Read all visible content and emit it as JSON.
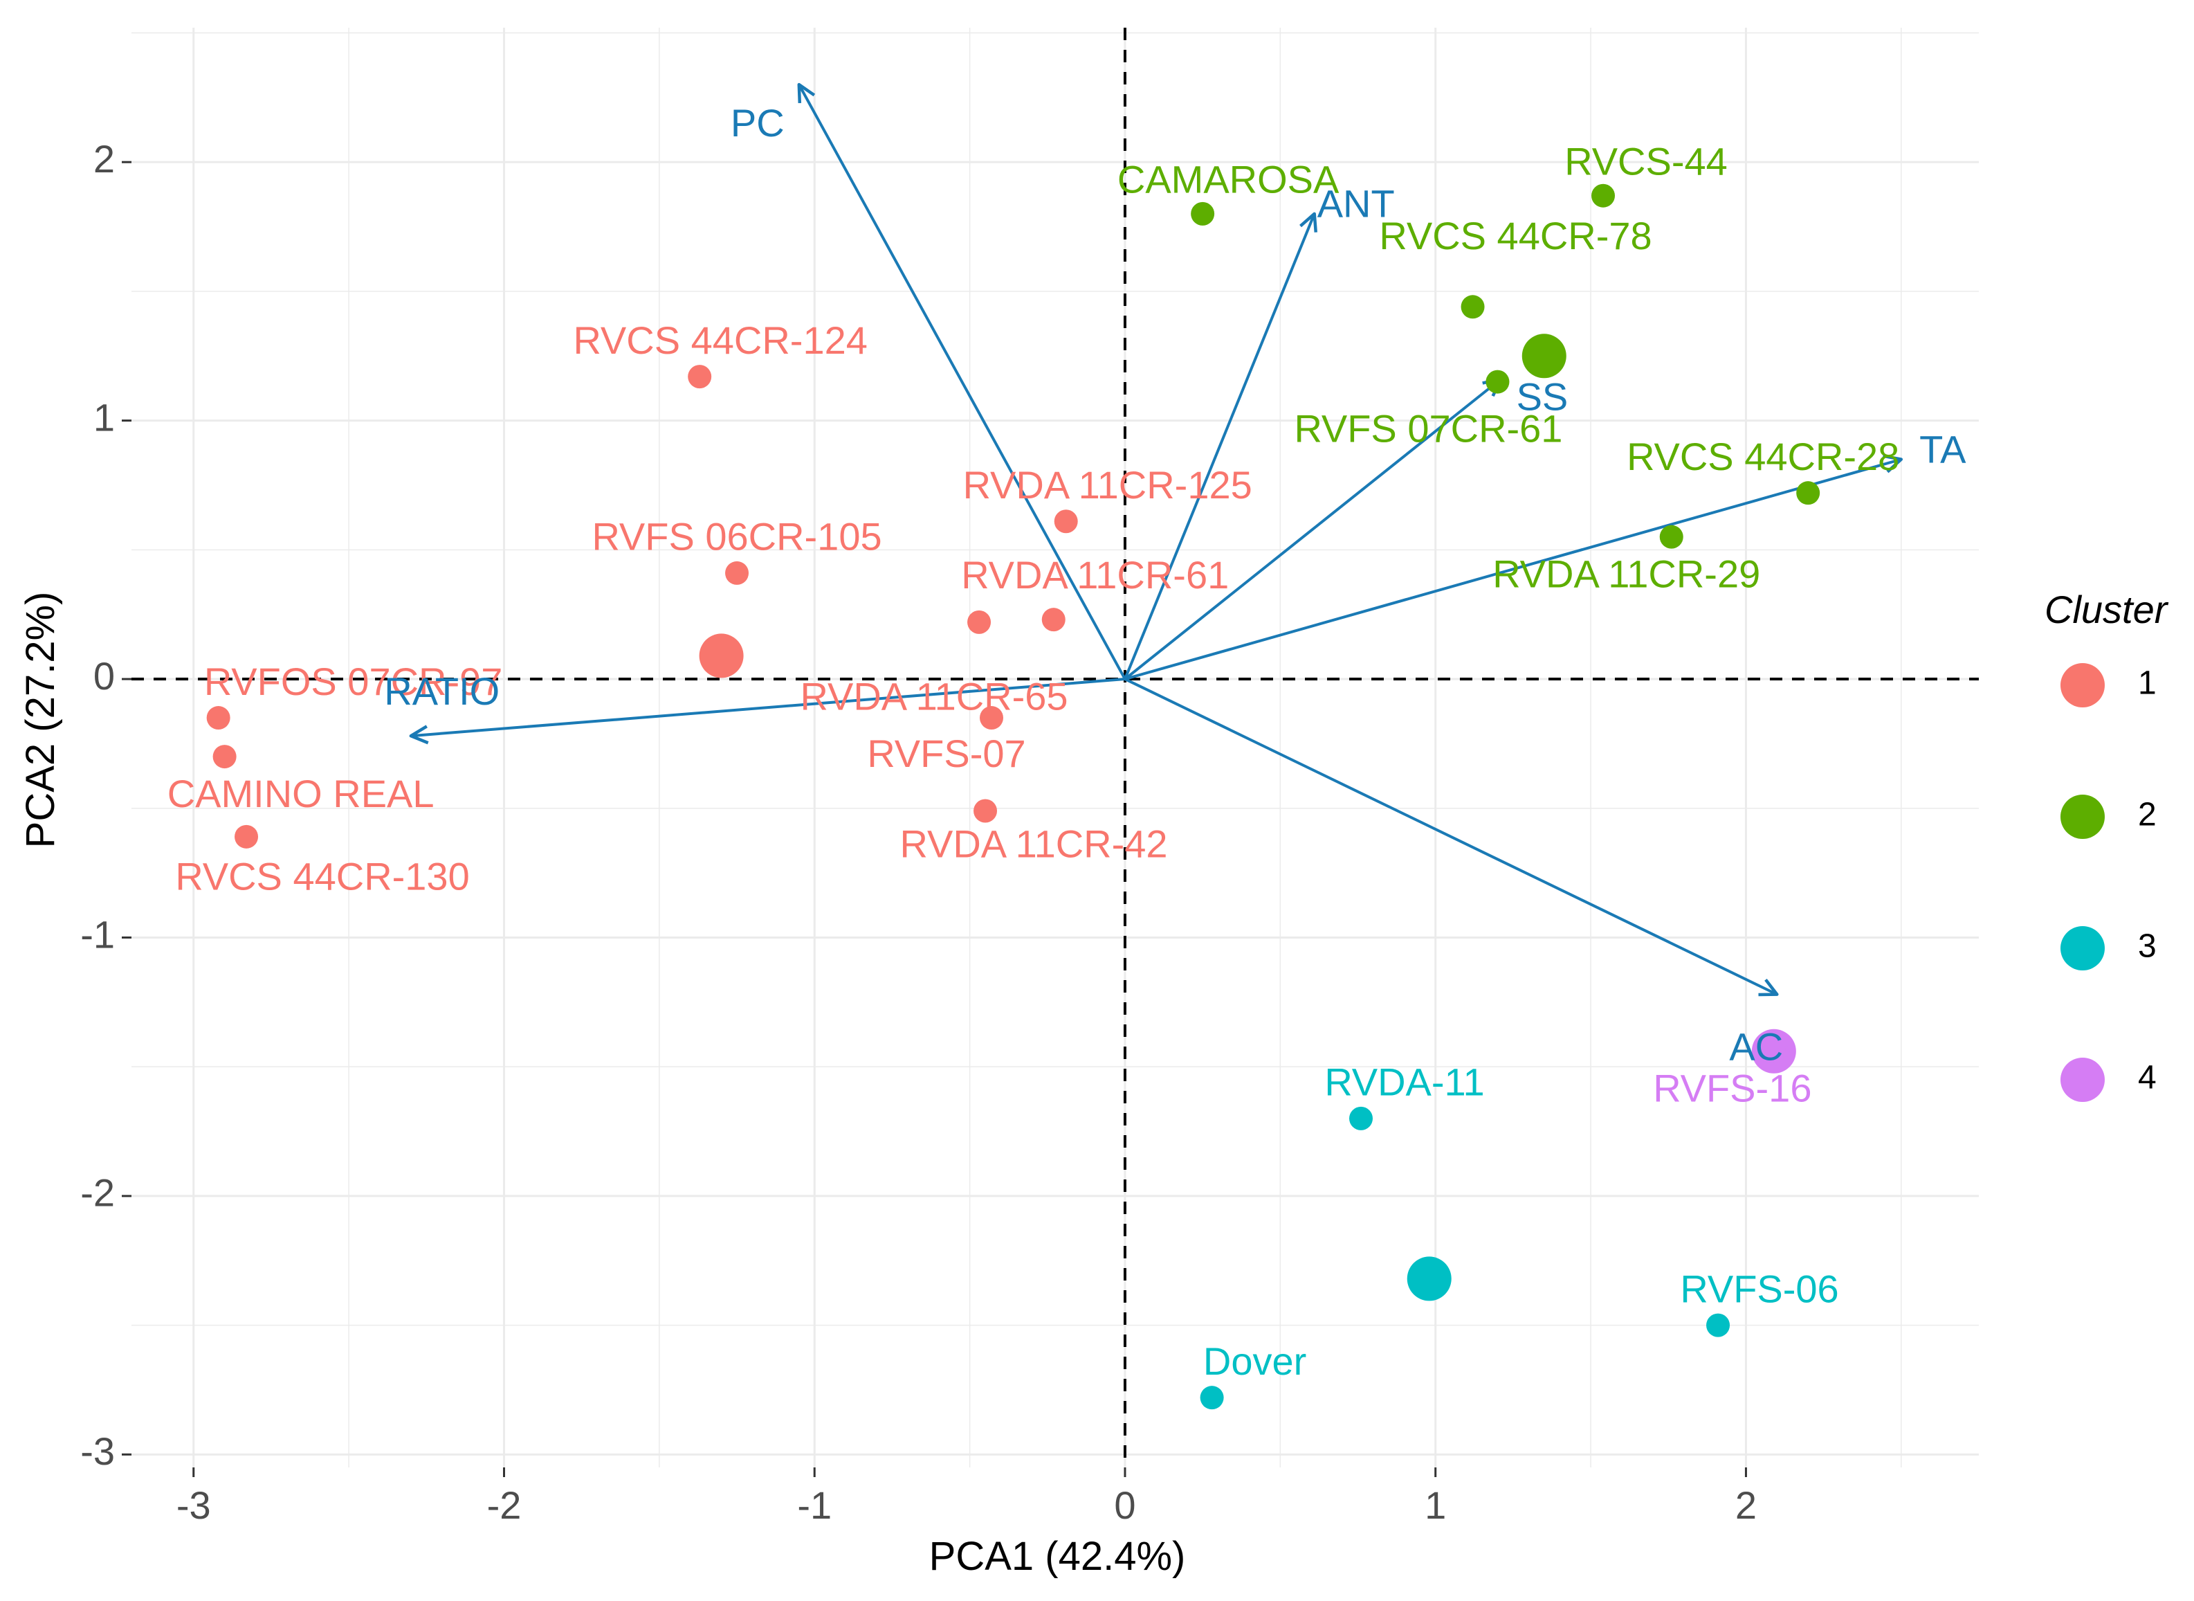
{
  "chart_data": {
    "type": "scatter",
    "subtype": "pca-biplot",
    "xlabel": "PCA1 (42.4%)",
    "ylabel": "PCA2 (27.2%)",
    "xlim": [
      -3.2,
      2.75
    ],
    "ylim": [
      -3.05,
      2.52
    ],
    "xticks": [
      -3,
      -2,
      -1,
      0,
      1,
      2
    ],
    "yticks": [
      -3,
      -2,
      -1,
      0,
      1,
      2
    ],
    "xtick_labels": [
      "-3",
      "-2",
      "-1",
      "0",
      "1",
      "2"
    ],
    "ytick_labels": [
      "-3",
      "-2",
      "-1",
      "0",
      "1",
      "2"
    ],
    "grid": true,
    "reference_lines": {
      "x": 0,
      "y": 0,
      "style": "dashed"
    },
    "legend": {
      "title": "Cluster",
      "position": "right",
      "entries": [
        {
          "label": "1",
          "color": "#F8766D"
        },
        {
          "label": "2",
          "color": "#5DAE00"
        },
        {
          "label": "3",
          "color": "#00BFC4"
        },
        {
          "label": "4",
          "color": "#D57DF4"
        }
      ]
    },
    "colors": {
      "cluster1": "#F8766D",
      "cluster2": "#5DAE00",
      "cluster3": "#00BFC4",
      "cluster4": "#D57DF4",
      "vector": "#1A7AB5",
      "grid": "#EBEBEB",
      "axis_text": "#4D4D4D"
    },
    "points": [
      {
        "label": "RVCS 44CR-124",
        "x": -1.37,
        "y": 1.17,
        "cluster": 1,
        "label_anchor": "above"
      },
      {
        "label": "RVFS 06CR-105",
        "x": -1.25,
        "y": 0.41,
        "cluster": 1,
        "label_anchor": "above"
      },
      {
        "label": "RVDA 11CR-125",
        "x": -0.19,
        "y": 0.61,
        "cluster": 1,
        "label_anchor": "above"
      },
      {
        "label": "RVDA 11CR-61",
        "x": -0.23,
        "y": 0.23,
        "cluster": 1,
        "label_anchor": "above"
      },
      {
        "label": "RVDA 11CR-65",
        "x": -0.47,
        "y": 0.22,
        "cluster": 1,
        "label_anchor": "below"
      },
      {
        "label": "RVFS-07",
        "x": -0.43,
        "y": -0.15,
        "cluster": 1,
        "label_anchor": "below"
      },
      {
        "label": "RVDA 11CR-42",
        "x": -0.45,
        "y": -0.51,
        "cluster": 1,
        "label_anchor": "below"
      },
      {
        "label": "RVFOS 07CR-97",
        "x": -2.92,
        "y": -0.15,
        "cluster": 1,
        "label_anchor": "above"
      },
      {
        "label": "CAMINO REAL",
        "x": -2.9,
        "y": -0.3,
        "cluster": 1,
        "label_anchor": "below"
      },
      {
        "label": "RVCS 44CR-130",
        "x": -2.83,
        "y": -0.61,
        "cluster": 1,
        "label_anchor": "below"
      },
      {
        "label": "CAMAROSA",
        "x": 0.25,
        "y": 1.8,
        "cluster": 2,
        "label_anchor": "above"
      },
      {
        "label": "RVCS-44",
        "x": 1.54,
        "y": 1.87,
        "cluster": 2,
        "label_anchor": "above"
      },
      {
        "label": "RVCS 44CR-78",
        "x": 1.12,
        "y": 1.44,
        "cluster": 2,
        "label_anchor": "above"
      },
      {
        "label": "RVFS 07CR-61",
        "x": 1.2,
        "y": 1.15,
        "cluster": 2,
        "label_anchor": "below"
      },
      {
        "label": "RVCS 44CR-28",
        "x": 2.2,
        "y": 0.72,
        "cluster": 2,
        "label_anchor": "above"
      },
      {
        "label": "RVDA 11CR-29",
        "x": 1.76,
        "y": 0.55,
        "cluster": 2,
        "label_anchor": "below"
      },
      {
        "label": "RVDA-11",
        "x": 0.76,
        "y": -1.7,
        "cluster": 3,
        "label_anchor": "above"
      },
      {
        "label": "RVFS-06",
        "x": 1.91,
        "y": -2.5,
        "cluster": 3,
        "label_anchor": "above"
      },
      {
        "label": "Dover",
        "x": 0.28,
        "y": -2.78,
        "cluster": 3,
        "label_anchor": "above"
      },
      {
        "label": "RVFS-16",
        "x": 2.09,
        "y": -1.44,
        "cluster": 4,
        "label_anchor": "below"
      }
    ],
    "centroids": [
      {
        "cluster": 1,
        "x": -1.3,
        "y": 0.09
      },
      {
        "cluster": 2,
        "x": 1.35,
        "y": 1.25
      },
      {
        "cluster": 3,
        "x": 0.98,
        "y": -2.32
      },
      {
        "cluster": 4,
        "x": 2.09,
        "y": -1.44
      }
    ],
    "vectors": [
      {
        "name": "PC",
        "x": -1.05,
        "y": 2.3
      },
      {
        "name": "ANT",
        "x": 0.61,
        "y": 1.8
      },
      {
        "name": "SS",
        "x": 1.21,
        "y": 1.16
      },
      {
        "name": "TA",
        "x": 2.5,
        "y": 0.85
      },
      {
        "name": "RATIO",
        "x": -2.3,
        "y": -0.22
      },
      {
        "name": "AC",
        "x": 2.1,
        "y": -1.22
      }
    ]
  }
}
